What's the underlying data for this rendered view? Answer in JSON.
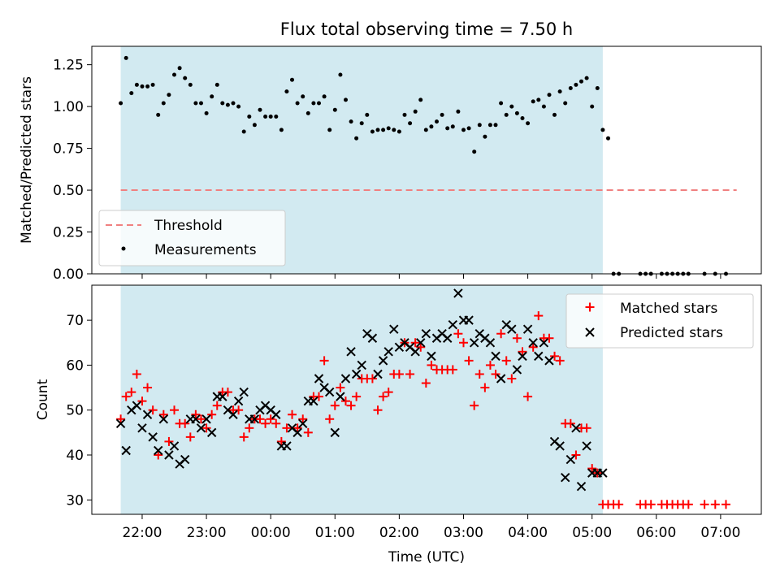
{
  "title": "Flux total observing time = 7.50 h",
  "xlabel": "Time (UTC)",
  "colors": {
    "shade": "#add8e6",
    "threshold": "#f08080",
    "matched": "#ff0000",
    "predicted": "#000000",
    "measurements": "#000000"
  },
  "chart_data": [
    {
      "type": "scatter",
      "ylabel": "Matched/Predicted stars",
      "ylim": [
        0,
        1.36
      ],
      "yticks": [
        "0.00",
        "0.25",
        "0.50",
        "0.75",
        "1.00",
        "1.25"
      ],
      "threshold": {
        "name": "Threshold",
        "y": 0.5,
        "x_range": [
          "21:40",
          "07:15"
        ]
      },
      "observing_window": [
        "21:40",
        "05:10"
      ],
      "legend": {
        "position": "lower left",
        "entries": [
          "Threshold",
          "Measurements"
        ]
      },
      "series": [
        {
          "name": "Measurements",
          "x": [
            "21:40",
            "21:45",
            "21:50",
            "21:55",
            "22:00",
            "22:05",
            "22:10",
            "22:15",
            "22:20",
            "22:25",
            "22:30",
            "22:35",
            "22:40",
            "22:45",
            "22:50",
            "22:55",
            "23:00",
            "23:05",
            "23:10",
            "23:15",
            "23:20",
            "23:25",
            "23:30",
            "23:35",
            "23:40",
            "23:45",
            "23:50",
            "23:55",
            "00:00",
            "00:05",
            "00:10",
            "00:15",
            "00:20",
            "00:25",
            "00:30",
            "00:35",
            "00:40",
            "00:45",
            "00:50",
            "00:55",
            "01:00",
            "01:05",
            "01:10",
            "01:15",
            "01:20",
            "01:25",
            "01:30",
            "01:35",
            "01:40",
            "01:45",
            "01:50",
            "01:55",
            "02:00",
            "02:05",
            "02:10",
            "02:15",
            "02:20",
            "02:25",
            "02:30",
            "02:35",
            "02:40",
            "02:45",
            "02:50",
            "02:55",
            "03:00",
            "03:05",
            "03:10",
            "03:15",
            "03:20",
            "03:25",
            "03:30",
            "03:35",
            "03:40",
            "03:45",
            "03:50",
            "03:55",
            "04:00",
            "04:05",
            "04:10",
            "04:15",
            "04:20",
            "04:25",
            "04:30",
            "04:35",
            "04:40",
            "04:45",
            "04:50",
            "04:55",
            "05:00",
            "05:05",
            "05:10",
            "05:15",
            "05:20",
            "05:25",
            "05:45",
            "05:50",
            "05:55",
            "06:05",
            "06:10",
            "06:15",
            "06:20",
            "06:25",
            "06:30",
            "06:45",
            "06:55",
            "07:05"
          ],
          "y": [
            1.02,
            1.29,
            1.08,
            1.13,
            1.12,
            1.12,
            1.13,
            0.95,
            1.02,
            1.07,
            1.19,
            1.23,
            1.17,
            1.13,
            1.02,
            1.02,
            0.96,
            1.06,
            1.13,
            1.02,
            1.01,
            1.02,
            1.0,
            0.85,
            0.94,
            0.89,
            0.98,
            0.94,
            0.94,
            0.94,
            0.86,
            1.09,
            1.16,
            1.02,
            1.06,
            0.96,
            1.02,
            1.02,
            1.06,
            0.86,
            0.98,
            1.19,
            1.04,
            0.91,
            0.81,
            0.9,
            0.95,
            0.85,
            0.86,
            0.86,
            0.87,
            0.86,
            0.85,
            0.95,
            0.9,
            0.97,
            1.04,
            0.86,
            0.88,
            0.91,
            0.95,
            0.87,
            0.88,
            0.97,
            0.86,
            0.87,
            0.73,
            0.89,
            0.82,
            0.89,
            0.89,
            1.02,
            0.95,
            1.0,
            0.96,
            0.93,
            0.9,
            1.03,
            1.04,
            1.0,
            1.07,
            0.95,
            1.09,
            1.02,
            1.11,
            1.13,
            1.15,
            1.17,
            1.0,
            1.11,
            0.86,
            0.81,
            0.0,
            0.0,
            0.0,
            0.0,
            0.0,
            0.0,
            0.0,
            0.0,
            0.0,
            0.0,
            0.0,
            0.0,
            0.0,
            0.0
          ]
        }
      ]
    },
    {
      "type": "scatter",
      "ylabel": "Count",
      "ylim": [
        26.8,
        77.8
      ],
      "yticks": [
        "30",
        "40",
        "50",
        "60",
        "70"
      ],
      "observing_window": [
        "21:40",
        "05:10"
      ],
      "legend": {
        "position": "upper right",
        "entries": [
          "Matched stars",
          "Predicted stars"
        ]
      },
      "xticks": [
        "22:00",
        "23:00",
        "00:00",
        "01:00",
        "02:00",
        "03:00",
        "04:00",
        "05:00",
        "06:00",
        "07:00"
      ],
      "xlim": [
        "21:13",
        "07:38"
      ],
      "series": [
        {
          "name": "Matched stars",
          "marker": "+",
          "x": [
            "21:40",
            "21:45",
            "21:50",
            "21:55",
            "22:00",
            "22:05",
            "22:10",
            "22:15",
            "22:20",
            "22:25",
            "22:30",
            "22:35",
            "22:40",
            "22:45",
            "22:50",
            "22:55",
            "23:00",
            "23:05",
            "23:10",
            "23:15",
            "23:20",
            "23:25",
            "23:30",
            "23:35",
            "23:40",
            "23:45",
            "23:50",
            "23:55",
            "00:00",
            "00:05",
            "00:10",
            "00:15",
            "00:20",
            "00:25",
            "00:30",
            "00:35",
            "00:40",
            "00:45",
            "00:50",
            "00:55",
            "01:00",
            "01:05",
            "01:10",
            "01:15",
            "01:20",
            "01:25",
            "01:30",
            "01:35",
            "01:40",
            "01:45",
            "01:50",
            "01:55",
            "02:00",
            "02:05",
            "02:10",
            "02:15",
            "02:20",
            "02:25",
            "02:30",
            "02:35",
            "02:40",
            "02:45",
            "02:50",
            "02:55",
            "03:00",
            "03:05",
            "03:10",
            "03:15",
            "03:20",
            "03:25",
            "03:30",
            "03:35",
            "03:40",
            "03:45",
            "03:50",
            "03:55",
            "04:00",
            "04:05",
            "04:10",
            "04:15",
            "04:20",
            "04:25",
            "04:30",
            "04:35",
            "04:40",
            "04:45",
            "04:50",
            "04:55",
            "05:00",
            "05:05",
            "05:10",
            "05:15",
            "05:20",
            "05:25",
            "05:45",
            "05:50",
            "05:55",
            "06:05",
            "06:10",
            "06:15",
            "06:20",
            "06:25",
            "06:30",
            "06:45",
            "06:55",
            "07:05"
          ],
          "y": [
            48,
            53,
            54,
            58,
            52,
            55,
            50,
            40,
            49,
            43,
            50,
            47,
            47,
            44,
            49,
            48,
            46,
            49,
            51,
            54,
            54,
            50,
            50,
            44,
            46,
            48,
            48,
            47,
            48,
            47,
            43,
            46,
            49,
            46,
            48,
            45,
            53,
            53,
            61,
            48,
            51,
            55,
            52,
            51,
            53,
            57,
            57,
            57,
            50,
            53,
            54,
            58,
            58,
            65,
            58,
            65,
            64,
            56,
            60,
            59,
            59,
            59,
            59,
            67,
            65,
            61,
            51,
            58,
            55,
            60,
            58,
            67,
            61,
            57,
            66,
            63,
            53,
            64,
            71,
            66,
            66,
            62,
            61,
            47,
            47,
            40,
            46,
            46,
            37,
            36,
            29,
            29,
            29,
            29,
            29,
            29,
            29,
            29,
            29,
            29,
            29,
            29,
            29,
            29,
            29,
            29
          ]
        },
        {
          "name": "Predicted stars",
          "marker": "x",
          "x": [
            "21:40",
            "21:45",
            "21:50",
            "21:55",
            "22:00",
            "22:05",
            "22:10",
            "22:15",
            "22:20",
            "22:25",
            "22:30",
            "22:35",
            "22:40",
            "22:45",
            "22:50",
            "22:55",
            "23:00",
            "23:05",
            "23:10",
            "23:15",
            "23:20",
            "23:25",
            "23:30",
            "23:35",
            "23:40",
            "23:45",
            "23:50",
            "23:55",
            "00:00",
            "00:05",
            "00:10",
            "00:15",
            "00:20",
            "00:25",
            "00:30",
            "00:35",
            "00:40",
            "00:45",
            "00:50",
            "00:55",
            "01:00",
            "01:05",
            "01:10",
            "01:15",
            "01:20",
            "01:25",
            "01:30",
            "01:35",
            "01:40",
            "01:45",
            "01:50",
            "01:55",
            "02:00",
            "02:05",
            "02:10",
            "02:15",
            "02:20",
            "02:25",
            "02:30",
            "02:35",
            "02:40",
            "02:45",
            "02:50",
            "02:55",
            "03:00",
            "03:05",
            "03:10",
            "03:15",
            "03:20",
            "03:25",
            "03:30",
            "03:35",
            "03:40",
            "03:45",
            "03:50",
            "03:55",
            "04:00",
            "04:05",
            "04:10",
            "04:15",
            "04:20",
            "04:25",
            "04:30",
            "04:35",
            "04:40",
            "04:45",
            "04:50",
            "04:55",
            "05:00",
            "05:05",
            "05:10"
          ],
          "y": [
            47,
            41,
            50,
            51,
            46,
            49,
            44,
            41,
            48,
            40,
            42,
            38,
            39,
            48,
            48,
            46,
            48,
            45,
            53,
            53,
            50,
            49,
            52,
            54,
            48,
            48,
            50,
            51,
            50,
            49,
            42,
            42,
            46,
            45,
            47,
            52,
            52,
            57,
            55,
            54,
            45,
            53,
            57,
            63,
            58,
            60,
            67,
            66,
            58,
            61,
            63,
            68,
            64,
            65,
            64,
            63,
            65,
            67,
            62,
            66,
            67,
            66,
            69,
            76,
            70,
            70,
            65,
            67,
            66,
            65,
            62,
            57,
            69,
            68,
            59,
            62,
            68,
            65,
            62,
            65,
            61,
            43,
            42,
            35,
            39,
            46,
            33,
            42,
            36,
            36,
            36
          ]
        }
      ]
    }
  ]
}
